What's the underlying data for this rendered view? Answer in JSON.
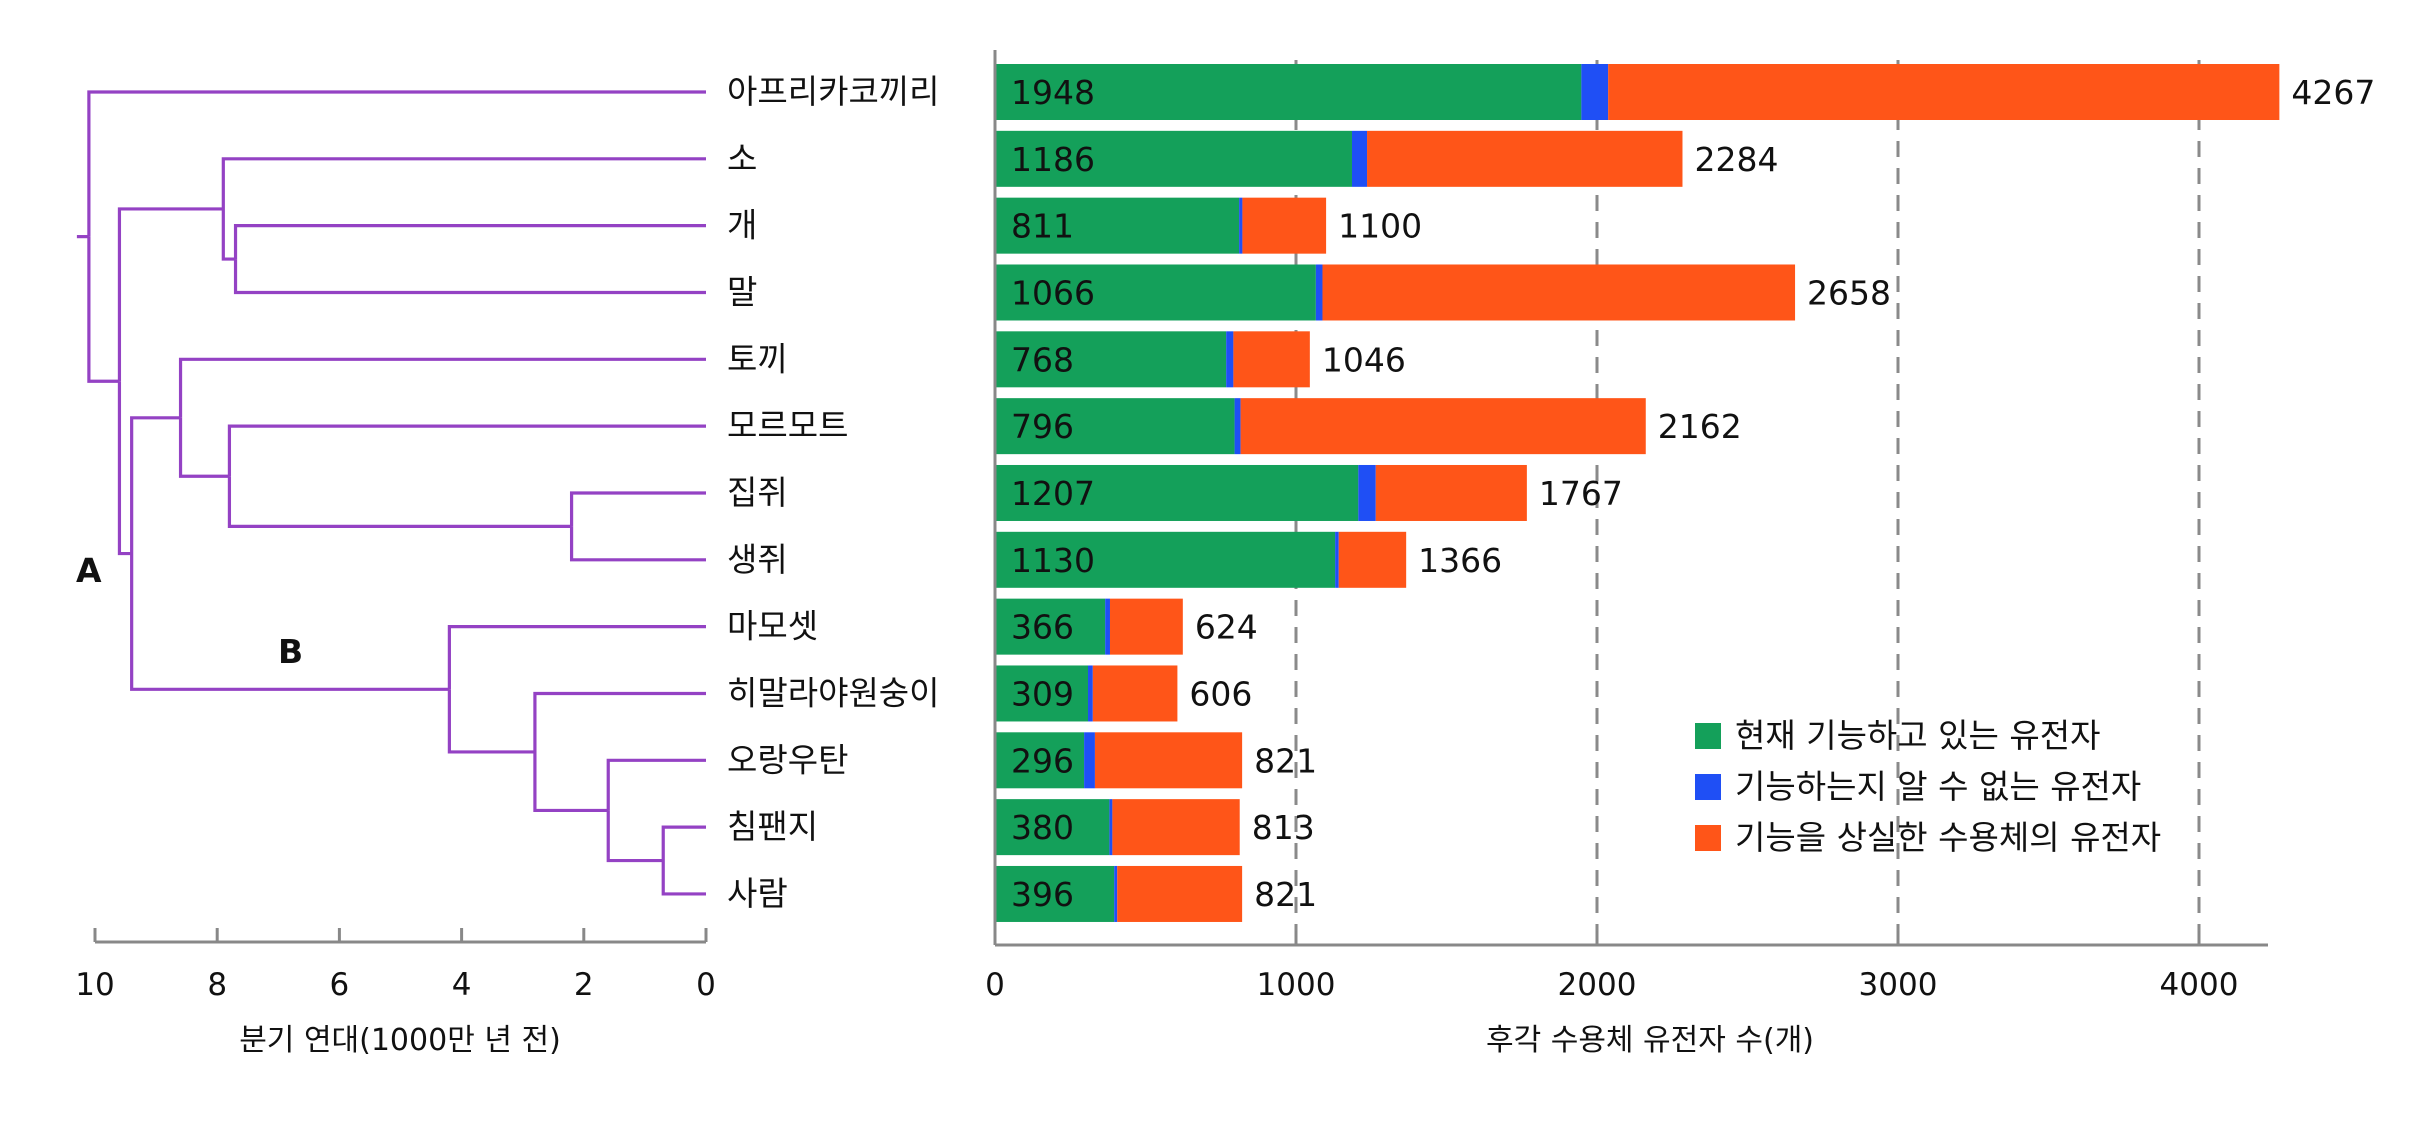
{
  "chart_data": [
    {
      "type": "dendrogram",
      "xlabel": "분기 연대(1000만 년 전)",
      "xlim": [
        10,
        0
      ],
      "xticks": [
        10,
        8,
        6,
        4,
        2,
        0
      ],
      "node_labels": [
        "A",
        "B"
      ],
      "leaves": [
        "아프리카코끼리",
        "소",
        "개",
        "말",
        "토끼",
        "모르모트",
        "집쥐",
        "생쥐",
        "마모셋",
        "히말라야원숭이",
        "오랑우탄",
        "침팬지",
        "사람"
      ],
      "merges": [
        {
          "id": "n_dh",
          "children": [
            "개",
            "말"
          ],
          "height": 7.7
        },
        {
          "id": "n_cow",
          "children": [
            "소",
            "n_dh"
          ],
          "height": 7.9
        },
        {
          "id": "n_mm",
          "children": [
            "집쥐",
            "생쥐"
          ],
          "height": 2.2
        },
        {
          "id": "n_gp",
          "children": [
            "모르모트",
            "n_mm"
          ],
          "height": 7.8
        },
        {
          "id": "n_glires",
          "children": [
            "토끼",
            "n_gp"
          ],
          "height": 8.6
        },
        {
          "id": "n_ch",
          "children": [
            "침팬지",
            "사람"
          ],
          "height": 0.7
        },
        {
          "id": "n_ora",
          "children": [
            "오랑우탄",
            "n_ch"
          ],
          "height": 1.6
        },
        {
          "id": "n_mac",
          "children": [
            "히말라야원숭이",
            "n_ora"
          ],
          "height": 2.8
        },
        {
          "id": "n_prim",
          "children": [
            "마모셋",
            "n_mac"
          ],
          "height": 4.2
        },
        {
          "id": "n_euarch",
          "children": [
            "n_glires",
            "n_prim"
          ],
          "height": 9.4
        },
        {
          "id": "n_bor",
          "children": [
            "n_cow",
            "n_euarch"
          ],
          "height": 9.6
        },
        {
          "id": "n_root",
          "children": [
            "아프리카코끼리",
            "n_bor"
          ],
          "height": 10.1
        }
      ]
    },
    {
      "type": "bar",
      "stacked": true,
      "orientation": "horizontal",
      "xlabel": "후각 수용체 유전자 수(개)",
      "xlim": [
        0,
        4250
      ],
      "xticks": [
        0,
        1000,
        2000,
        3000,
        4000
      ],
      "categories": [
        "아프리카코끼리",
        "소",
        "개",
        "말",
        "토끼",
        "모르모트",
        "집쥐",
        "생쥐",
        "마모셋",
        "히말라야원숭이",
        "오랑우탄",
        "침팬지",
        "사람"
      ],
      "series": [
        {
          "name": "현재 기능하고 있는 유전자",
          "color": "#14a05a",
          "values": [
            1948,
            1186,
            811,
            1066,
            768,
            796,
            1207,
            1130,
            366,
            309,
            296,
            380,
            396
          ]
        },
        {
          "name": "기능하는지 알 수 없는 유전자",
          "color": "#1f4ff5",
          "values": [
            89,
            50,
            11,
            22,
            24,
            20,
            58,
            12,
            16,
            16,
            36,
            10,
            10
          ]
        },
        {
          "name": "기능을 상실한 수용체의 유전자",
          "color": "#ff5518",
          "values": [
            2230,
            1048,
            278,
            1570,
            254,
            1346,
            502,
            224,
            242,
            281,
            489,
            423,
            415
          ]
        }
      ],
      "totals": [
        "4267",
        "2284",
        "1100",
        "2658",
        "1046",
        "2162",
        "1767",
        "1366",
        "624",
        "606",
        "821",
        "813",
        "821"
      ],
      "functional_labels": [
        "1948",
        "1186",
        "811",
        "1066",
        "768",
        "796",
        "1207",
        "1130",
        "366",
        "309",
        "296",
        "380",
        "396"
      ],
      "legend_position": "bottom-right",
      "grid": "vertical dashed"
    }
  ]
}
